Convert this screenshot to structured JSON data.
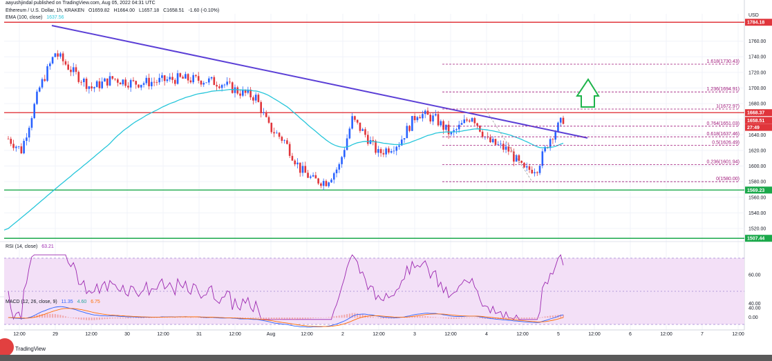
{
  "header": {
    "published": "aayushjindal published on TradingView.com, Aug 05, 2022 04:31 UTC",
    "symbol": "Ethereum / U.S. Dollar, 1h, KRAKEN",
    "o": "O1659.82",
    "h": "H1664.00",
    "l": "L1657.18",
    "c": "C1658.51",
    "chg": "-1.60 (-0.10%)",
    "ema": "EMA (100, close)",
    "ema_val": "1637.56",
    "rsi": "RSI (14, close)",
    "rsi_val": "63.21",
    "macd": "MACD (12, 26, close, 9)",
    "macd_v1": "11.35",
    "macd_v2": "4.60",
    "macd_v3": "6.75"
  },
  "branding": {
    "logo_text": "TradingView"
  },
  "colors": {
    "up": "#2962ff",
    "down": "#e0353b",
    "ema": "#26c6da",
    "trendline": "#5b3fd6",
    "resistance": "#e0353b",
    "support": "#1aa84a",
    "fib": "#a0187a",
    "arrow": "#1db34a",
    "rsi_line": "#9c27b0",
    "rsi_band": "#f3e0f7"
  },
  "chart_data": {
    "type": "candlestick",
    "currency": "USD",
    "y_ticks": [
      1520,
      1540,
      1560,
      1580,
      1600,
      1620,
      1640,
      1660,
      1680,
      1700,
      1720,
      1740,
      1760
    ],
    "ylim": [
      1505,
      1795
    ],
    "x_labels": [
      "12:00",
      "29",
      "12:00",
      "30",
      "12:00",
      "31",
      "12:00",
      "Aug",
      "12:00",
      "2",
      "12:00",
      "3",
      "12:00",
      "4",
      "12:00",
      "5",
      "12:00",
      "6",
      "12:00",
      "7",
      "12:00"
    ],
    "price_badges": [
      {
        "label": "1784.18",
        "value": 1784.18,
        "color": "#e0353b"
      },
      {
        "label": "1668.37",
        "value": 1668.37,
        "color": "#e0353b"
      },
      {
        "label": "1658.51",
        "value": 1658.51,
        "color": "#e0353b"
      },
      {
        "label": "27:49",
        "value": 1649.5,
        "color": "#e0353b"
      },
      {
        "label": "1569.23",
        "value": 1569.23,
        "color": "#1aa84a"
      },
      {
        "label": "1507.44",
        "value": 1507.44,
        "color": "#1aa84a"
      }
    ],
    "horizontal_levels": [
      {
        "value": 1784.18,
        "color": "#e0353b"
      },
      {
        "value": 1668.37,
        "color": "#e0353b"
      },
      {
        "value": 1569.23,
        "color": "#1aa84a"
      },
      {
        "value": 1507.44,
        "color": "#1aa84a"
      }
    ],
    "fib_levels": [
      {
        "label": "1.618(1730.43)",
        "value": 1730.43
      },
      {
        "label": "1.236(1694.91)",
        "value": 1694.91
      },
      {
        "label": "1(1672.97)",
        "value": 1672.97
      },
      {
        "label": "0.764(1651.03)",
        "value": 1651.03
      },
      {
        "label": "0.618(1637.46)",
        "value": 1637.46
      },
      {
        "label": "0.5(1626.49)",
        "value": 1626.49
      },
      {
        "label": "0.236(1601.94)",
        "value": 1601.94
      },
      {
        "label": "0(1580.00)",
        "value": 1580.0
      }
    ],
    "rsi_ticks": [
      "60.00",
      "40.00"
    ],
    "macd_ticks": [
      "40.00",
      "0.00"
    ]
  }
}
